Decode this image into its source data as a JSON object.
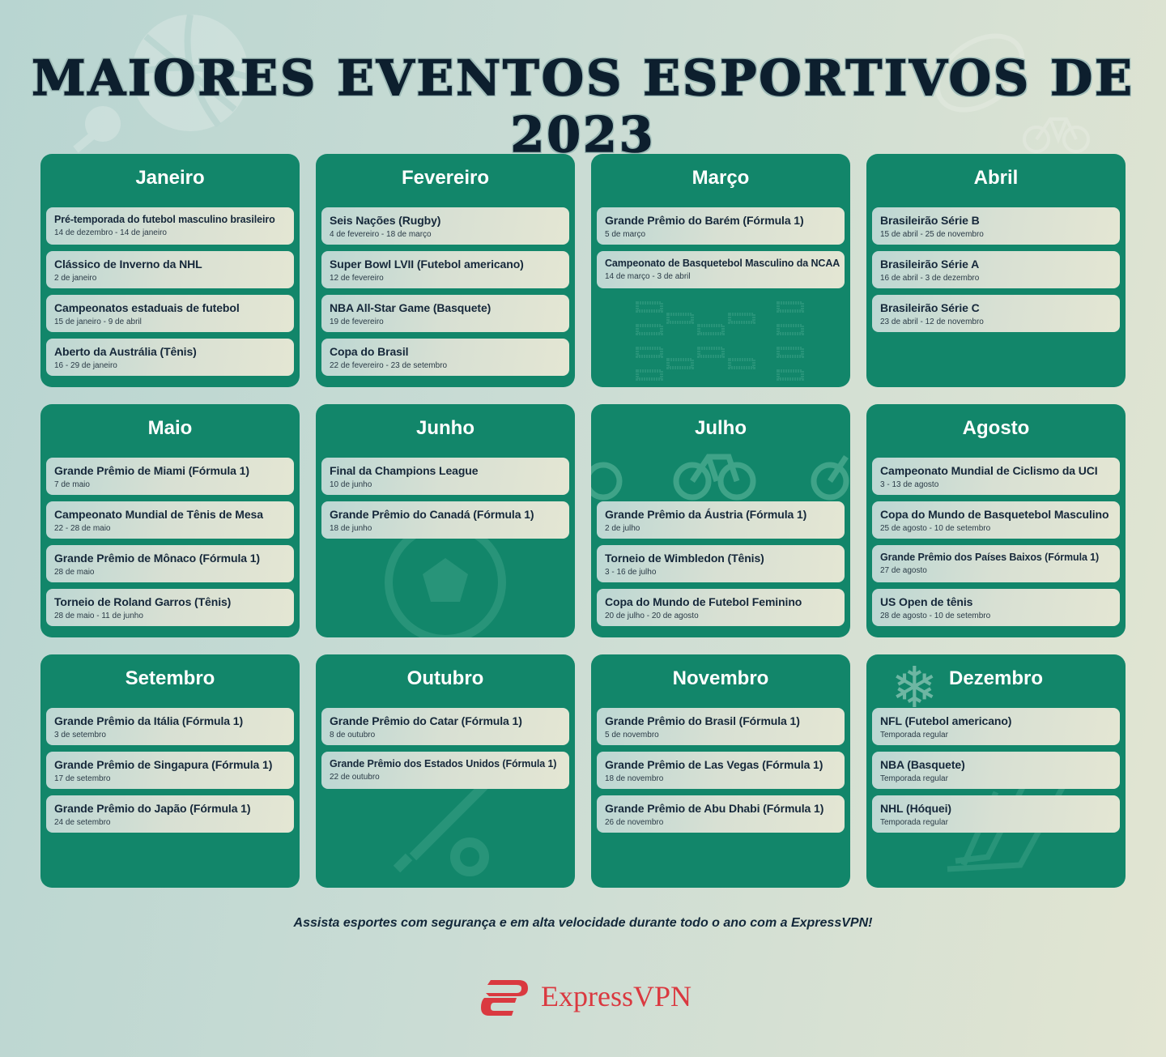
{
  "title": "MAIORES EVENTOS ESPORTIVOS DE 2023",
  "months": [
    {
      "name": "Janeiro",
      "icon": "none",
      "events": [
        {
          "name": "Pré-temporada do futebol masculino brasileiro",
          "date": "14 de dezembro - 14 de janeiro"
        },
        {
          "name": "Clássico de Inverno da NHL",
          "date": "2 de janeiro"
        },
        {
          "name": "Campeonatos estaduais de futebol",
          "date": "15 de janeiro - 9 de abril"
        },
        {
          "name": "Aberto da Austrália (Tênis)",
          "date": "16 - 29 de janeiro"
        }
      ]
    },
    {
      "name": "Fevereiro",
      "icon": "none",
      "events": [
        {
          "name": "Seis Nações (Rugby)",
          "date": "4 de fevereiro - 18 de março"
        },
        {
          "name": "Super Bowl LVII (Futebol americano)",
          "date": "12 de fevereiro"
        },
        {
          "name": "NBA All-Star Game (Basquete)",
          "date": "19 de fevereiro"
        },
        {
          "name": "Copa do Brasil",
          "date": "22 de fevereiro - 23 de setembro"
        }
      ]
    },
    {
      "name": "Março",
      "icon": "tournament-bracket-icon",
      "events": [
        {
          "name": "Grande Prêmio do Barém (Fórmula 1)",
          "date": "5 de março"
        },
        {
          "name": "Campeonato de Basquetebol Masculino da NCAA",
          "date": "14 de março - 3 de abril"
        }
      ]
    },
    {
      "name": "Abril",
      "icon": "none",
      "events": [
        {
          "name": "Brasileirão Série B",
          "date": "15 de abril - 25 de novembro"
        },
        {
          "name": "Brasileirão Série A",
          "date": "16 de abril - 3 de dezembro"
        },
        {
          "name": "Brasileirão Série C",
          "date": "23 de abril - 12 de novembro"
        }
      ]
    },
    {
      "name": "Maio",
      "icon": "none",
      "events": [
        {
          "name": "Grande Prêmio de Miami (Fórmula 1)",
          "date": "7 de maio"
        },
        {
          "name": "Campeonato Mundial de Tênis de Mesa",
          "date": "22 - 28 de maio"
        },
        {
          "name": "Grande Prêmio de Mônaco (Fórmula 1)",
          "date": "28 de maio"
        },
        {
          "name": "Torneio de Roland Garros (Tênis)",
          "date": "28 de maio - 11 de junho"
        }
      ]
    },
    {
      "name": "Junho",
      "icon": "soccer-ball-icon",
      "events": [
        {
          "name": "Final da Champions League",
          "date": "10 de junho"
        },
        {
          "name": "Grande Prêmio do Canadá (Fórmula 1)",
          "date": "18 de junho"
        }
      ]
    },
    {
      "name": "Julho",
      "icon": "bicycle-icon",
      "offset": 1,
      "events": [
        {
          "name": "Grande Prêmio da Áustria (Fórmula 1)",
          "date": "2 de julho"
        },
        {
          "name": "Torneio de Wimbledon (Tênis)",
          "date": "3 - 16 de julho"
        },
        {
          "name": "Copa do Mundo de Futebol Feminino",
          "date": "20 de julho - 20 de agosto"
        }
      ]
    },
    {
      "name": "Agosto",
      "icon": "none",
      "events": [
        {
          "name": "Campeonato Mundial de Ciclismo da UCI",
          "date": "3 - 13 de agosto"
        },
        {
          "name": "Copa do Mundo de Basquetebol Masculino",
          "date": "25 de agosto - 10 de setembro"
        },
        {
          "name": "Grande Prêmio dos Países Baixos (Fórmula 1)",
          "date": "27 de agosto"
        },
        {
          "name": "US Open de tênis",
          "date": "28 de agosto - 10 de setembro"
        }
      ]
    },
    {
      "name": "Setembro",
      "icon": "none",
      "events": [
        {
          "name": "Grande Prêmio da Itália (Fórmula 1)",
          "date": "3 de setembro"
        },
        {
          "name": "Grande Prêmio de Singapura (Fórmula 1)",
          "date": "17 de setembro"
        },
        {
          "name": "Grande Prêmio do Japão (Fórmula 1)",
          "date": "24 de setembro"
        }
      ]
    },
    {
      "name": "Outubro",
      "icon": "cricket-bat-icon",
      "events": [
        {
          "name": "Grande Prêmio do Catar (Fórmula 1)",
          "date": "8 de outubro"
        },
        {
          "name": "Grande Prêmio dos Estados Unidos (Fórmula 1)",
          "date": "22 de outubro"
        }
      ]
    },
    {
      "name": "Novembro",
      "icon": "none",
      "events": [
        {
          "name": "Grande Prêmio do Brasil (Fórmula 1)",
          "date": "5 de novembro"
        },
        {
          "name": "Grande Prêmio de Las Vegas (Fórmula 1)",
          "date": "18 de novembro"
        },
        {
          "name": "Grande Prêmio de Abu Dhabi (Fórmula 1)",
          "date": "26 de novembro"
        }
      ]
    },
    {
      "name": "Dezembro",
      "icon": "hockey-sticks-icon",
      "events": [
        {
          "name": "NFL (Futebol americano)",
          "date": "Temporada regular"
        },
        {
          "name": "NBA (Basquete)",
          "date": "Temporada regular"
        },
        {
          "name": "NHL (Hóquei)",
          "date": "Temporada regular"
        }
      ]
    }
  ],
  "tagline": "Assista esportes com segurança e em alta velocidade durante todo o ano com a ExpressVPN!",
  "logo": {
    "text": "ExpressVPN",
    "color": "#da3940"
  },
  "colors": {
    "card": "#12866a",
    "title": "#0d1f2e"
  }
}
